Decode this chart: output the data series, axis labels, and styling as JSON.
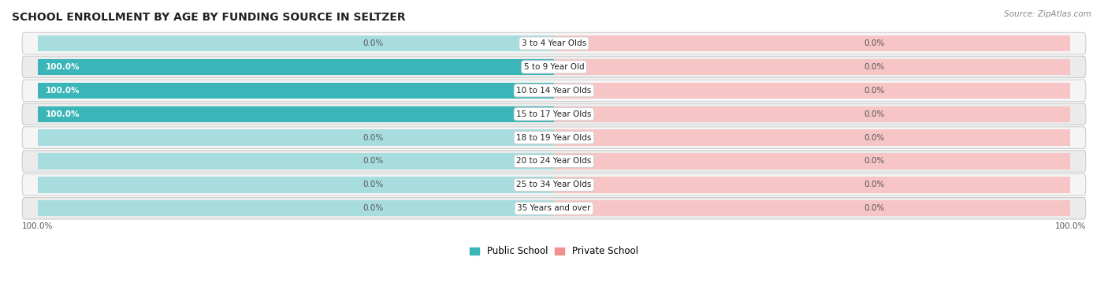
{
  "title": "SCHOOL ENROLLMENT BY AGE BY FUNDING SOURCE IN SELTZER",
  "source": "Source: ZipAtlas.com",
  "categories": [
    "3 to 4 Year Olds",
    "5 to 9 Year Old",
    "10 to 14 Year Olds",
    "15 to 17 Year Olds",
    "18 to 19 Year Olds",
    "20 to 24 Year Olds",
    "25 to 34 Year Olds",
    "35 Years and over"
  ],
  "public_values": [
    0.0,
    100.0,
    100.0,
    100.0,
    0.0,
    0.0,
    0.0,
    0.0
  ],
  "private_values": [
    0.0,
    0.0,
    0.0,
    0.0,
    0.0,
    0.0,
    0.0,
    0.0
  ],
  "public_color": "#3ab5b8",
  "private_color": "#f09090",
  "public_light_color": "#a8dde0",
  "private_light_color": "#f7c5c5",
  "row_bg_even": "#f0f0f0",
  "row_bg_odd": "#e8e8e8",
  "row_border_color": "#d0d0d0",
  "title_fontsize": 10,
  "label_fontsize": 7.5,
  "legend_fontsize": 8.5,
  "value_label_color": "#555555",
  "value_label_inside_color": "white",
  "axis_max": 100.0,
  "center_label_bg": "white",
  "center_label_border": "#cccccc"
}
